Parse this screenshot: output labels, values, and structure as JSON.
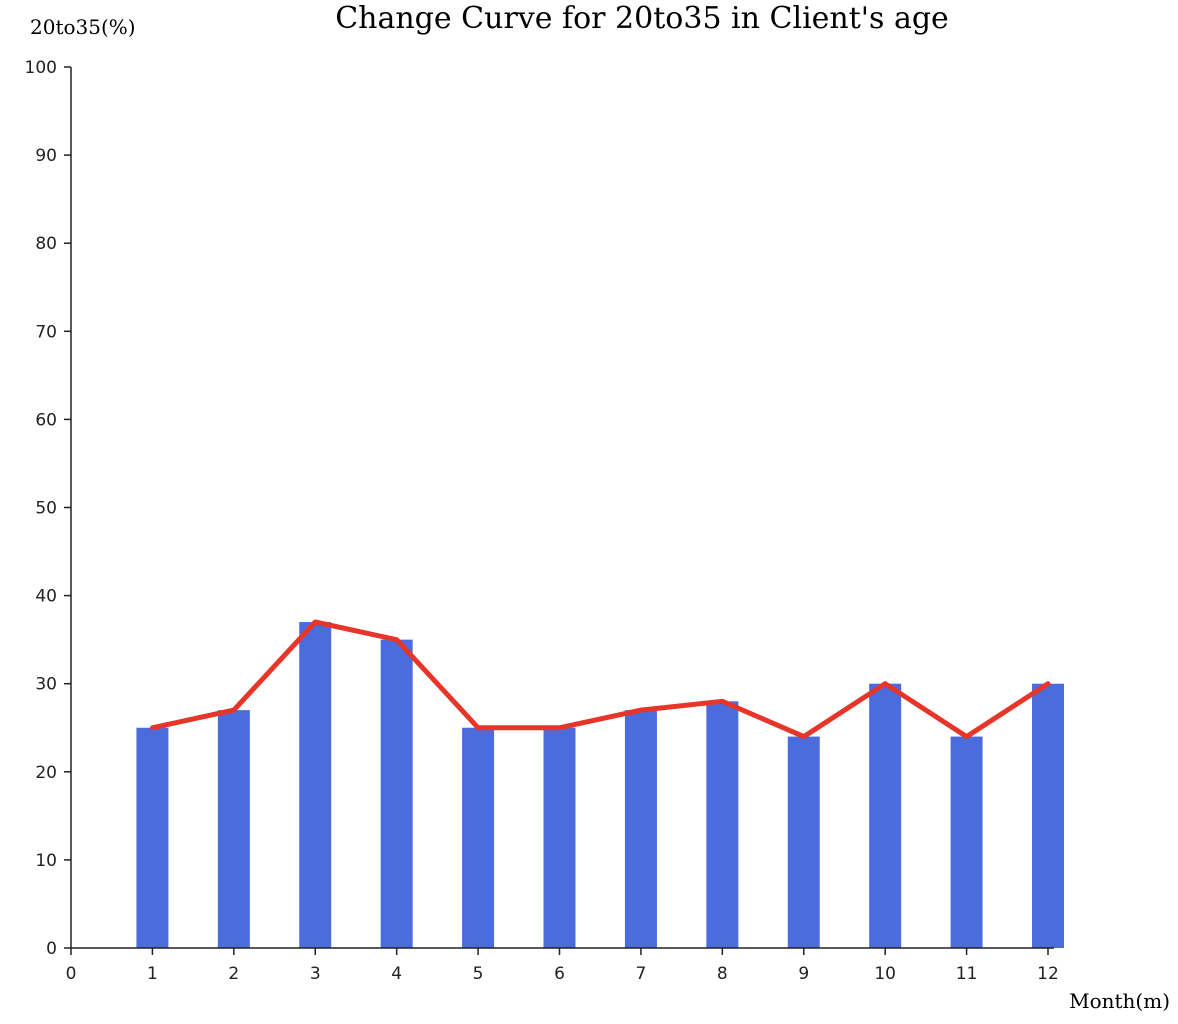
{
  "chart_data": {
    "type": "bar",
    "title": "Change Curve for 20to35 in Client's age",
    "xlabel": "Month(m)",
    "ylabel": "20to35(%)",
    "x_ticks": [
      "0",
      "1",
      "2",
      "3",
      "4",
      "5",
      "6",
      "7",
      "8",
      "9",
      "10",
      "11",
      "12"
    ],
    "y_ticks": [
      "0",
      "10",
      "20",
      "30",
      "40",
      "50",
      "60",
      "70",
      "80",
      "90",
      "100"
    ],
    "xlim": [
      0,
      12
    ],
    "ylim": [
      0,
      100
    ],
    "categories": [
      1,
      2,
      3,
      4,
      5,
      6,
      7,
      8,
      9,
      10,
      11,
      12
    ],
    "values": [
      25,
      27,
      37,
      35,
      25,
      25,
      27,
      28,
      24,
      30,
      24,
      30
    ],
    "line_overlay": true,
    "grid": false,
    "colors": {
      "bar": "#4a6cdc",
      "line": "#e8352a"
    }
  }
}
